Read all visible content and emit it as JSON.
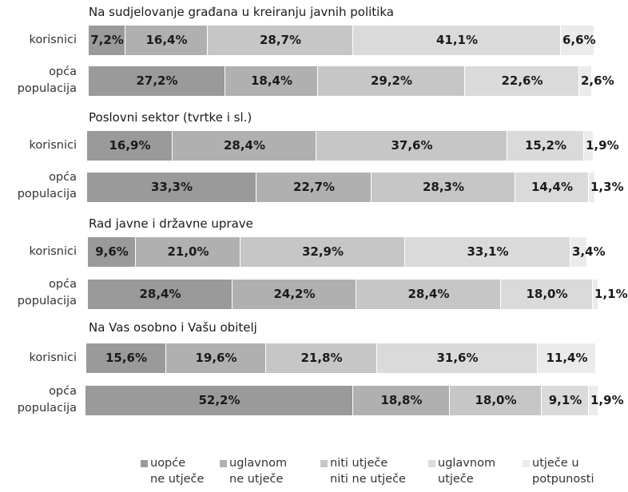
{
  "chart_data": {
    "type": "bar",
    "orientation": "horizontal",
    "stacked": true,
    "normalized": true,
    "groups": [
      {
        "title": "Na sudjelovanje građana u kreiranju javnih politika",
        "rows": [
          {
            "label_lines": [
              "korisnici"
            ],
            "values": [
              7.2,
              16.4,
              28.7,
              41.1,
              6.6
            ],
            "labels": [
              "7,2%",
              "16,4%",
              "28,7%",
              "41,1%",
              "6,6%"
            ]
          },
          {
            "label_lines": [
              "opća",
              "populacija"
            ],
            "values": [
              27.2,
              18.4,
              29.2,
              22.6,
              2.6
            ],
            "labels": [
              "27,2%",
              "18,4%",
              "29,2%",
              "22,6%",
              "2,6%"
            ]
          }
        ]
      },
      {
        "title": "Poslovni sektor (tvrtke i sl.)",
        "rows": [
          {
            "label_lines": [
              "korisnici"
            ],
            "values": [
              16.9,
              28.4,
              37.6,
              15.2,
              1.9
            ],
            "labels": [
              "16,9%",
              "28,4%",
              "37,6%",
              "15,2%",
              "1,9%"
            ]
          },
          {
            "label_lines": [
              "opća",
              "populacija"
            ],
            "values": [
              33.3,
              22.7,
              28.3,
              14.4,
              1.3
            ],
            "labels": [
              "33,3%",
              "22,7%",
              "28,3%",
              "14,4%",
              "1,3%"
            ]
          }
        ]
      },
      {
        "title": "Rad javne i državne uprave",
        "rows": [
          {
            "label_lines": [
              "korisnici"
            ],
            "values": [
              9.6,
              21.0,
              32.9,
              33.1,
              3.4
            ],
            "labels": [
              "9,6%",
              "21,0%",
              "32,9%",
              "33,1%",
              "3,4%"
            ]
          },
          {
            "label_lines": [
              "opća",
              "populacija"
            ],
            "values": [
              28.4,
              24.2,
              28.4,
              18.0,
              1.1
            ],
            "labels": [
              "28,4%",
              "24,2%",
              "28,4%",
              "18,0%",
              "1,1%"
            ]
          }
        ]
      },
      {
        "title": "Na Vas osobno i Vašu obitelj",
        "rows": [
          {
            "label_lines": [
              "korisnici"
            ],
            "values": [
              15.6,
              19.6,
              21.8,
              31.6,
              11.4
            ],
            "labels": [
              "15,6%",
              "19,6%",
              "21,8%",
              "31,6%",
              "11,4%"
            ]
          },
          {
            "label_lines": [
              "opća",
              "populacija"
            ],
            "values": [
              52.2,
              18.8,
              18.0,
              9.1,
              1.9
            ],
            "labels": [
              "52,2%",
              "18,8%",
              "18,0%",
              "9,1%",
              "1,9%"
            ]
          }
        ]
      }
    ],
    "series": [
      {
        "name_lines": [
          "uopće",
          "ne utječe"
        ],
        "color": "#9a9a9a"
      },
      {
        "name_lines": [
          "uglavnom",
          "ne utječe"
        ],
        "color": "#b0b0b0"
      },
      {
        "name_lines": [
          "niti utječe",
          "niti ne utječe"
        ],
        "color": "#c6c6c6"
      },
      {
        "name_lines": [
          "uglavnom",
          "utječe"
        ],
        "color": "#dadada"
      },
      {
        "name_lines": [
          "utječe u",
          "potpunosti"
        ],
        "color": "#ebebeb"
      }
    ],
    "legend_position": "bottom",
    "xlim": [
      0,
      100
    ]
  }
}
